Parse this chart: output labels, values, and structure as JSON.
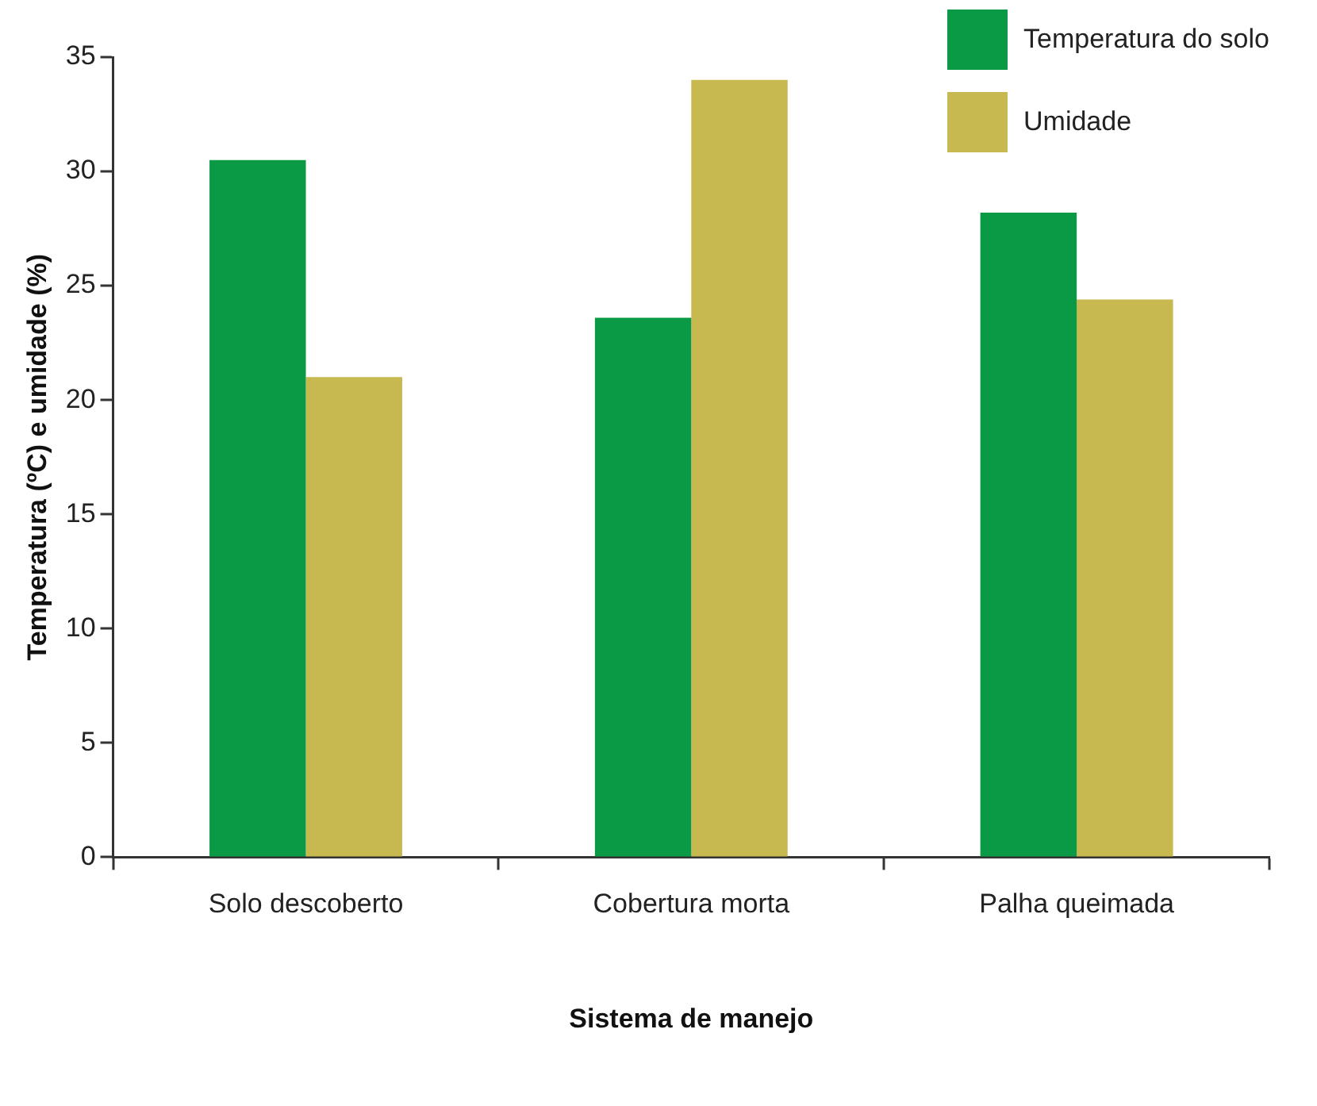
{
  "chart_data": {
    "type": "bar",
    "xlabel": "Sistema de manejo",
    "ylabel": "Temperatura (ºC) e umidade (%)",
    "categories": [
      "Solo descoberto",
      "Cobertura morta",
      "Palha queimada"
    ],
    "series": [
      {
        "name": "Temperatura do solo",
        "color": "#0a9a45",
        "values": [
          30.5,
          23.6,
          28.2
        ]
      },
      {
        "name": "Umidade",
        "color": "#c8b850",
        "values": [
          21.0,
          34.0,
          24.4
        ]
      }
    ],
    "ylim": [
      0,
      35
    ],
    "yticks": [
      0,
      5,
      10,
      15,
      20,
      25,
      30,
      35
    ],
    "grid": false,
    "legend": "top right"
  }
}
